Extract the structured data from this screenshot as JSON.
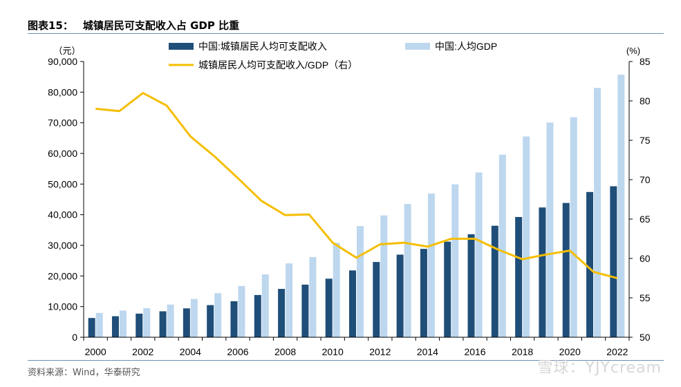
{
  "header": {
    "figure_no": "图表15：",
    "title": "城镇居民可支配收入占 GDP 比重"
  },
  "footer": {
    "source": "资料来源：Wind，华泰研究",
    "watermark": "雪球：YJYcream"
  },
  "colors": {
    "income_bar": "#1f4e79",
    "gdp_bar": "#bdd7ee",
    "ratio_line": "#f5be00",
    "axis": "#000000",
    "rule": "#6d8fb5"
  },
  "chart_data": {
    "type": "bar",
    "x": [
      2000,
      2001,
      2002,
      2003,
      2004,
      2005,
      2006,
      2007,
      2008,
      2009,
      2010,
      2011,
      2012,
      2013,
      2014,
      2015,
      2016,
      2017,
      2018,
      2019,
      2020,
      2021,
      2022
    ],
    "x_tick_labels": [
      "2000",
      "2002",
      "2004",
      "2006",
      "2008",
      "2010",
      "2012",
      "2014",
      "2016",
      "2018",
      "2020",
      "2022"
    ],
    "series": [
      {
        "name": "中国:城镇居民人均可支配收入",
        "type": "bar",
        "axis": "left",
        "values": [
          6280,
          6860,
          7703,
          8472,
          9422,
          10493,
          11759,
          13786,
          15781,
          17175,
          19109,
          21810,
          24565,
          26955,
          28844,
          31195,
          33616,
          36396,
          39251,
          42359,
          43834,
          47412,
          49283
        ]
      },
      {
        "name": "中国:人均GDP",
        "type": "bar",
        "axis": "left",
        "values": [
          7942,
          8717,
          9506,
          10666,
          12487,
          14368,
          16738,
          20494,
          24100,
          26180,
          30808,
          36277,
          39771,
          43497,
          46912,
          49922,
          53783,
          59592,
          65534,
          70078,
          71828,
          81370,
          85698
        ]
      },
      {
        "name": "城镇居民人均可支配收入/GDP（右）",
        "type": "line",
        "axis": "right",
        "values": [
          79.0,
          78.7,
          81.0,
          79.4,
          75.5,
          73.0,
          70.2,
          67.3,
          65.5,
          65.6,
          62.0,
          60.1,
          61.8,
          62.0,
          61.5,
          62.5,
          62.5,
          61.1,
          59.9,
          60.5,
          61.0,
          58.3,
          57.5
        ]
      }
    ],
    "y_left": {
      "unit": "（元）",
      "ylim": [
        0,
        90000
      ],
      "tick_labels": [
        "0",
        "10,000",
        "20,000",
        "30,000",
        "40,000",
        "50,000",
        "60,000",
        "70,000",
        "80,000",
        "90,000"
      ]
    },
    "y_right": {
      "unit": "(%)",
      "ylim": [
        50,
        85
      ],
      "tick_labels": [
        "50",
        "55",
        "60",
        "65",
        "70",
        "75",
        "80",
        "85"
      ]
    },
    "legend_placement": "top",
    "grid": false
  }
}
